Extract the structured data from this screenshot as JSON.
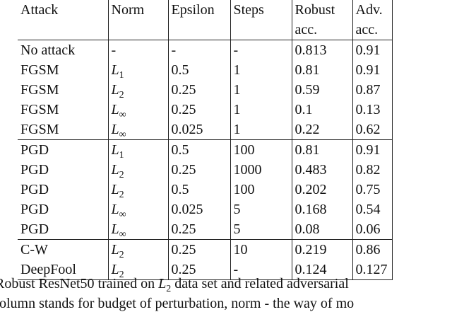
{
  "table": {
    "header": [
      [
        "Attack"
      ],
      [
        "Norm"
      ],
      [
        "Epsilon"
      ],
      [
        "Steps"
      ],
      [
        "Robust",
        "acc."
      ],
      [
        "Adv.",
        "acc."
      ]
    ],
    "groups": [
      [
        [
          "No attack",
          "-",
          "-",
          "-",
          "0.813",
          "0.91"
        ],
        [
          "FGSM",
          {
            "symbol": "L",
            "subscript": "1"
          },
          "0.5",
          "1",
          "0.81",
          "0.91"
        ],
        [
          "FGSM",
          {
            "symbol": "L",
            "subscript": "2"
          },
          "0.25",
          "1",
          "0.59",
          "0.87"
        ],
        [
          "FGSM",
          {
            "symbol": "L",
            "subscript": "∞"
          },
          "0.25",
          "1",
          "0.1",
          "0.13"
        ],
        [
          "FGSM",
          {
            "symbol": "L",
            "subscript": "∞"
          },
          "0.025",
          "1",
          "0.22",
          "0.62"
        ]
      ],
      [
        [
          "PGD",
          {
            "symbol": "L",
            "subscript": "1"
          },
          "0.5",
          "100",
          "0.81",
          "0.91"
        ],
        [
          "PGD",
          {
            "symbol": "L",
            "subscript": "2"
          },
          "0.25",
          "1000",
          "0.483",
          "0.82"
        ],
        [
          "PGD",
          {
            "symbol": "L",
            "subscript": "2"
          },
          "0.5",
          "100",
          "0.202",
          "0.75"
        ],
        [
          "PGD",
          {
            "symbol": "L",
            "subscript": "∞"
          },
          "0.025",
          "5",
          "0.168",
          "0.54"
        ],
        [
          "PGD",
          {
            "symbol": "L",
            "subscript": "∞"
          },
          "0.25",
          "5",
          "0.08",
          "0.06"
        ]
      ],
      [
        [
          "C-W",
          {
            "symbol": "L",
            "subscript": "2"
          },
          "0.25",
          "10",
          "0.219",
          "0.86"
        ],
        [
          "DeepFool",
          {
            "symbol": "L",
            "subscript": "2"
          },
          "0.25",
          "-",
          "0.124",
          "0.127"
        ]
      ]
    ]
  },
  "caption": {
    "line1": {
      "before": "Robust ResNet50 trained on ",
      "symbol": "L",
      "subscript": "2",
      "after": " data set and related adversarial"
    },
    "line2": "olumn stands for budget of perturbation, norm - the way of mo"
  }
}
